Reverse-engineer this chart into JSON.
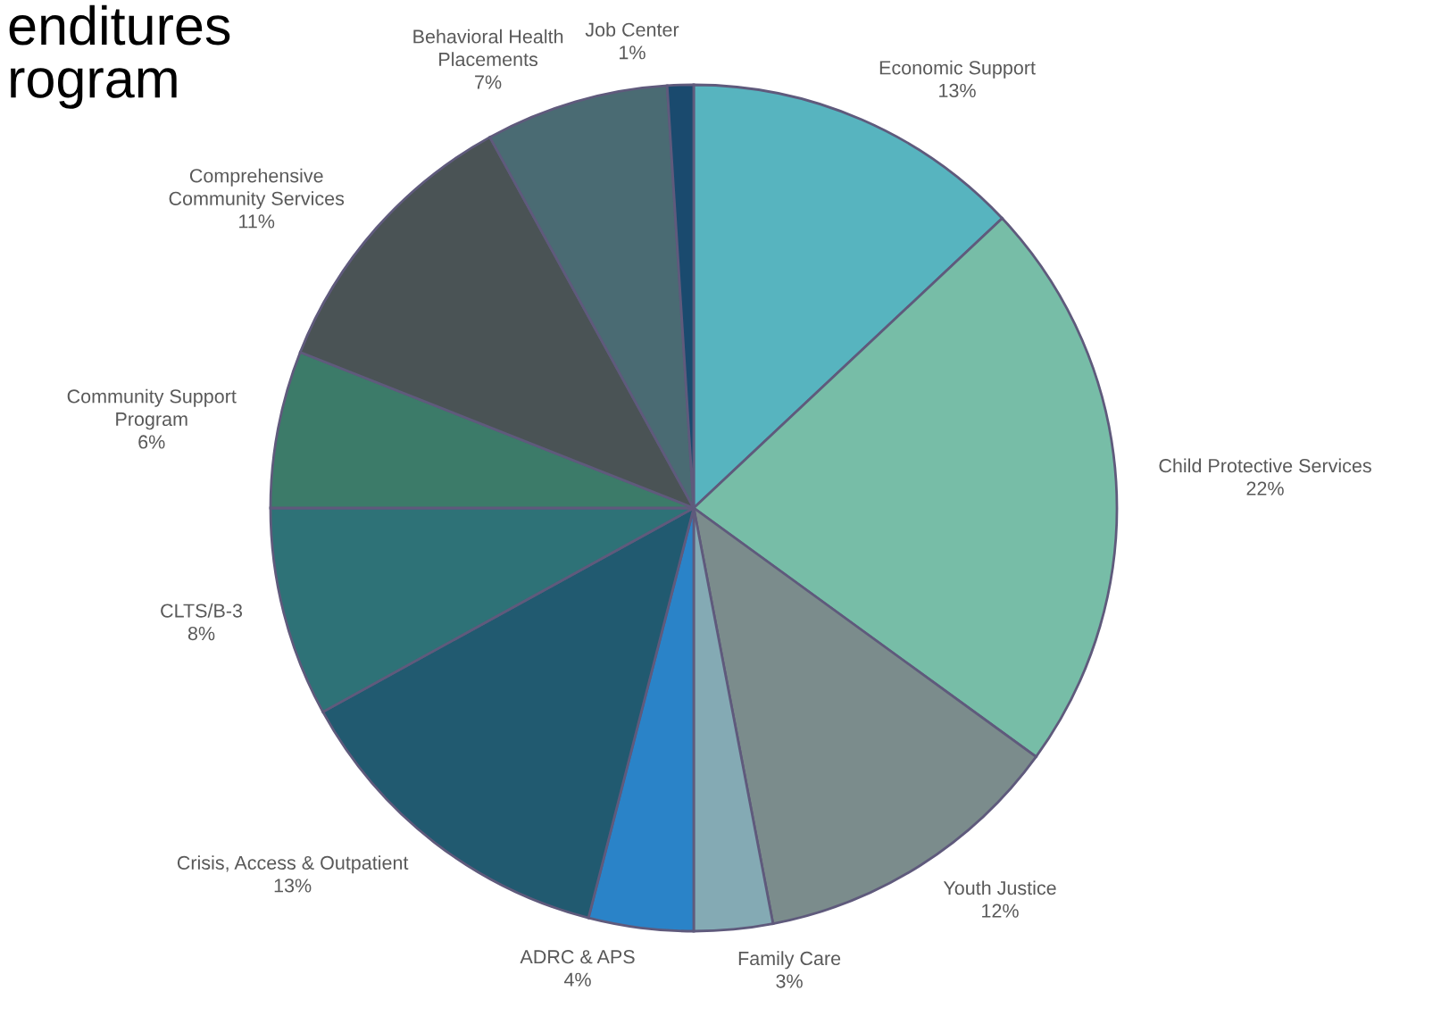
{
  "chart_data": {
    "type": "pie",
    "title": "enditures\nrogram",
    "categories": [
      "Economic Support",
      "Child Protective Services",
      "Youth Justice",
      "Family Care",
      "ADRC & APS",
      "Crisis, Access & Outpatient",
      "CLTS/B-3",
      "Community Support\nProgram",
      "Comprehensive\nCommunity Services",
      "Behavioral Health\nPlacements",
      "Job Center"
    ],
    "values": [
      13,
      22,
      12,
      3,
      4,
      13,
      8,
      6,
      11,
      7,
      1
    ],
    "colors": [
      "#57b4bf",
      "#77bda7",
      "#7b8c8c",
      "#84aab4",
      "#2a83c8",
      "#215a70",
      "#2e7277",
      "#3c7b69",
      "#4a5355",
      "#4a6b73",
      "#1a4a6e"
    ],
    "value_labels": [
      "13%",
      "22%",
      "12%",
      "3%",
      "4%",
      "13%",
      "8%",
      "6%",
      "11%",
      "7%",
      "1%"
    ],
    "legend": false
  }
}
